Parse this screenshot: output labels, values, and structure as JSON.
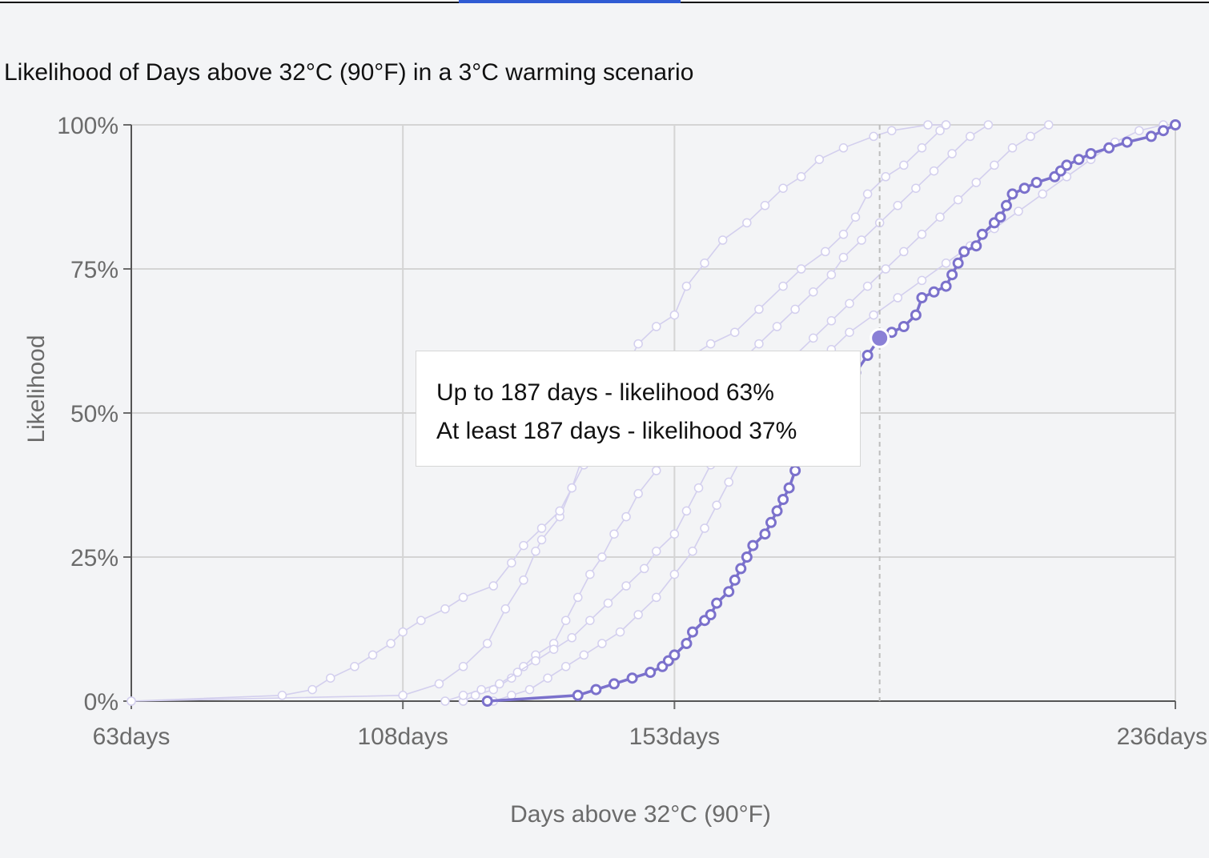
{
  "chart_data": {
    "type": "line",
    "title": "Likelihood of Days above 32°C (90°F) in a 3°C warming scenario",
    "xlabel": "Days above 32°C (90°F)",
    "ylabel": "Likelihood",
    "xlim": [
      63,
      236
    ],
    "ylim": [
      0,
      100
    ],
    "x_ticks": [
      63,
      108,
      153,
      236
    ],
    "x_tick_labels": [
      "63days",
      "108days",
      "153days",
      "236days"
    ],
    "y_ticks": [
      0,
      25,
      50,
      75,
      100
    ],
    "y_tick_labels": [
      "0%",
      "25%",
      "50%",
      "75%",
      "100%"
    ],
    "grid": true,
    "colors": {
      "highlight": "#7b71cc",
      "background_series": "#d3cfee",
      "hover_point": "#8a80d6",
      "grid": "#d4d4d4"
    },
    "series": [
      {
        "highlighted": false,
        "points": [
          [
            63,
            0
          ],
          [
            108,
            1
          ],
          [
            114,
            3
          ],
          [
            118,
            6
          ],
          [
            122,
            10
          ],
          [
            125,
            16
          ],
          [
            128,
            21
          ],
          [
            130,
            26
          ],
          [
            131,
            28
          ],
          [
            134,
            32
          ],
          [
            136,
            37
          ],
          [
            138,
            43
          ],
          [
            141,
            49
          ],
          [
            143,
            53
          ],
          [
            145,
            58
          ],
          [
            147,
            62
          ],
          [
            150,
            65
          ],
          [
            153,
            67
          ],
          [
            155,
            72
          ],
          [
            158,
            76
          ],
          [
            161,
            80
          ],
          [
            165,
            83
          ],
          [
            168,
            86
          ],
          [
            171,
            89
          ],
          [
            174,
            91
          ],
          [
            177,
            94
          ],
          [
            181,
            96
          ],
          [
            186,
            98
          ],
          [
            189,
            99
          ],
          [
            195,
            100
          ],
          [
            198,
            100
          ]
        ]
      },
      {
        "highlighted": false,
        "points": [
          [
            63,
            0
          ],
          [
            88,
            1
          ],
          [
            93,
            2
          ],
          [
            96,
            4
          ],
          [
            100,
            6
          ],
          [
            103,
            8
          ],
          [
            106,
            10
          ],
          [
            108,
            12
          ],
          [
            111,
            14
          ],
          [
            115,
            16
          ],
          [
            118,
            18
          ],
          [
            123,
            20
          ],
          [
            126,
            24
          ],
          [
            128,
            27
          ],
          [
            131,
            30
          ],
          [
            134,
            33
          ],
          [
            136,
            37
          ],
          [
            138,
            41
          ],
          [
            141,
            45
          ],
          [
            146,
            49
          ],
          [
            150,
            52
          ],
          [
            153,
            56
          ],
          [
            156,
            60
          ],
          [
            159,
            62
          ],
          [
            163,
            64
          ],
          [
            167,
            68
          ],
          [
            171,
            72
          ],
          [
            174,
            75
          ],
          [
            178,
            78
          ],
          [
            181,
            81
          ],
          [
            183,
            84
          ],
          [
            185,
            88
          ],
          [
            188,
            91
          ],
          [
            191,
            93
          ],
          [
            194,
            96
          ],
          [
            197,
            99
          ],
          [
            198,
            100
          ]
        ]
      },
      {
        "highlighted": false,
        "points": [
          [
            118,
            0
          ],
          [
            120,
            1
          ],
          [
            123,
            2
          ],
          [
            126,
            4
          ],
          [
            128,
            6
          ],
          [
            130,
            8
          ],
          [
            133,
            10
          ],
          [
            135,
            14
          ],
          [
            137,
            18
          ],
          [
            139,
            22
          ],
          [
            141,
            25
          ],
          [
            143,
            29
          ],
          [
            145,
            32
          ],
          [
            147,
            36
          ],
          [
            150,
            40
          ],
          [
            153,
            44
          ],
          [
            156,
            48
          ],
          [
            159,
            52
          ],
          [
            162,
            56
          ],
          [
            164,
            59
          ],
          [
            167,
            62
          ],
          [
            170,
            65
          ],
          [
            173,
            68
          ],
          [
            176,
            71
          ],
          [
            179,
            74
          ],
          [
            181,
            77
          ],
          [
            184,
            80
          ],
          [
            187,
            83
          ],
          [
            190,
            86
          ],
          [
            193,
            89
          ],
          [
            196,
            92
          ],
          [
            199,
            95
          ],
          [
            202,
            98
          ],
          [
            205,
            100
          ]
        ]
      },
      {
        "highlighted": false,
        "points": [
          [
            115,
            0
          ],
          [
            118,
            1
          ],
          [
            121,
            2
          ],
          [
            124,
            3
          ],
          [
            127,
            5
          ],
          [
            130,
            7
          ],
          [
            133,
            9
          ],
          [
            136,
            11
          ],
          [
            139,
            14
          ],
          [
            142,
            17
          ],
          [
            145,
            20
          ],
          [
            148,
            23
          ],
          [
            150,
            26
          ],
          [
            153,
            29
          ],
          [
            155,
            33
          ],
          [
            157,
            37
          ],
          [
            159,
            41
          ],
          [
            161,
            45
          ],
          [
            164,
            49
          ],
          [
            167,
            53
          ],
          [
            170,
            57
          ],
          [
            173,
            60
          ],
          [
            176,
            63
          ],
          [
            179,
            66
          ],
          [
            182,
            69
          ],
          [
            185,
            72
          ],
          [
            188,
            75
          ],
          [
            191,
            78
          ],
          [
            194,
            81
          ],
          [
            197,
            84
          ],
          [
            200,
            87
          ],
          [
            203,
            90
          ],
          [
            206,
            93
          ],
          [
            209,
            96
          ],
          [
            212,
            98
          ],
          [
            215,
            100
          ]
        ]
      },
      {
        "highlighted": false,
        "points": [
          [
            123,
            0
          ],
          [
            126,
            1
          ],
          [
            129,
            2
          ],
          [
            132,
            4
          ],
          [
            135,
            6
          ],
          [
            138,
            8
          ],
          [
            141,
            10
          ],
          [
            144,
            12
          ],
          [
            147,
            15
          ],
          [
            150,
            18
          ],
          [
            153,
            22
          ],
          [
            156,
            26
          ],
          [
            158,
            30
          ],
          [
            160,
            34
          ],
          [
            162,
            38
          ],
          [
            164,
            42
          ],
          [
            167,
            46
          ],
          [
            170,
            50
          ],
          [
            173,
            54
          ],
          [
            176,
            58
          ],
          [
            179,
            61
          ],
          [
            182,
            64
          ],
          [
            186,
            67
          ],
          [
            190,
            70
          ],
          [
            194,
            73
          ],
          [
            198,
            76
          ],
          [
            202,
            79
          ],
          [
            206,
            82
          ],
          [
            210,
            85
          ],
          [
            214,
            88
          ],
          [
            218,
            91
          ],
          [
            222,
            94
          ],
          [
            226,
            97
          ],
          [
            230,
            99
          ],
          [
            234,
            100
          ]
        ]
      },
      {
        "highlighted": true,
        "points": [
          [
            122,
            0
          ],
          [
            137,
            1
          ],
          [
            140,
            2
          ],
          [
            143,
            3
          ],
          [
            146,
            4
          ],
          [
            149,
            5
          ],
          [
            151,
            6
          ],
          [
            152,
            7
          ],
          [
            153,
            8
          ],
          [
            155,
            10
          ],
          [
            156,
            12
          ],
          [
            158,
            14
          ],
          [
            159,
            15
          ],
          [
            160,
            17
          ],
          [
            162,
            19
          ],
          [
            163,
            21
          ],
          [
            164,
            23
          ],
          [
            165,
            25
          ],
          [
            166,
            27
          ],
          [
            168,
            29
          ],
          [
            169,
            31
          ],
          [
            170,
            33
          ],
          [
            171,
            35
          ],
          [
            172,
            37
          ],
          [
            173,
            40
          ],
          [
            174,
            42
          ],
          [
            175,
            44
          ],
          [
            176,
            46
          ],
          [
            177,
            48
          ],
          [
            178,
            50
          ],
          [
            179,
            52
          ],
          [
            181,
            54
          ],
          [
            183,
            57
          ],
          [
            185,
            60
          ],
          [
            187,
            63
          ],
          [
            189,
            64
          ],
          [
            191,
            65
          ],
          [
            193,
            67
          ],
          [
            194,
            70
          ],
          [
            196,
            71
          ],
          [
            198,
            72
          ],
          [
            199,
            74
          ],
          [
            200,
            76
          ],
          [
            201,
            78
          ],
          [
            203,
            79
          ],
          [
            204,
            81
          ],
          [
            206,
            83
          ],
          [
            207,
            84
          ],
          [
            208,
            86
          ],
          [
            209,
            88
          ],
          [
            211,
            89
          ],
          [
            213,
            90
          ],
          [
            216,
            91
          ],
          [
            217,
            92
          ],
          [
            218,
            93
          ],
          [
            220,
            94
          ],
          [
            222,
            95
          ],
          [
            225,
            96
          ],
          [
            228,
            97
          ],
          [
            232,
            98
          ],
          [
            234,
            99
          ],
          [
            236,
            100
          ]
        ]
      }
    ],
    "hover": {
      "x": 187,
      "y": 63
    }
  },
  "tooltip": {
    "line1": "Up to 187 days - likelihood 63%",
    "line2": "At least 187 days - likelihood 37%"
  }
}
